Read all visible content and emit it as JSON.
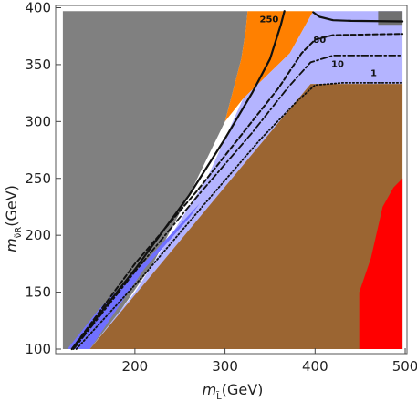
{
  "chart_data": {
    "type": "area",
    "xlim": [
      112,
      502
    ],
    "ylim": [
      96,
      402
    ],
    "xticks": [
      200,
      300,
      400,
      500
    ],
    "yticks": [
      100,
      150,
      200,
      250,
      300,
      350,
      400
    ],
    "xlabel": {
      "main": "m",
      "sub": "L̃",
      "unit": "(GeV)"
    },
    "ylabel": {
      "main": "m",
      "sub": "ν̃R",
      "unit": "(GeV)"
    },
    "regions": [
      {
        "name": "gray",
        "color": "#808080",
        "points": [
          [
            120,
            397
          ],
          [
            325,
            397
          ],
          [
            323,
            380
          ],
          [
            318,
            355
          ],
          [
            300,
            300
          ],
          [
            260,
            235
          ],
          [
            220,
            175
          ],
          [
            185,
            135
          ],
          [
            150,
            100
          ],
          [
            120,
            100
          ]
        ]
      },
      {
        "name": "orange",
        "color": "#ff8000",
        "points": [
          [
            325,
            397
          ],
          [
            398,
            397
          ],
          [
            372,
            360
          ],
          [
            320,
            320
          ],
          [
            300,
            300
          ],
          [
            318,
            355
          ],
          [
            323,
            380
          ]
        ]
      },
      {
        "name": "light-blue",
        "color": "#b4b4ff",
        "points": [
          [
            398,
            397
          ],
          [
            497,
            397
          ],
          [
            497,
            333
          ],
          [
            395,
            333
          ],
          [
            150,
            100
          ],
          [
            200,
            150
          ],
          [
            240,
            200
          ],
          [
            280,
            250
          ],
          [
            320,
            320
          ],
          [
            372,
            360
          ]
        ]
      },
      {
        "name": "blue",
        "color": "#7070ff",
        "points": [
          [
            125,
            100
          ],
          [
            150,
            100
          ],
          [
            210,
            170
          ],
          [
            260,
            215
          ],
          [
            272,
            228
          ],
          [
            215,
            180
          ],
          [
            160,
            135
          ]
        ]
      },
      {
        "name": "brown",
        "color": "#9b6532",
        "points": [
          [
            150,
            100
          ],
          [
            395,
            333
          ],
          [
            497,
            333
          ],
          [
            497,
            100
          ]
        ]
      },
      {
        "name": "red",
        "color": "#ff0000",
        "points": [
          [
            449,
            100
          ],
          [
            497,
            100
          ],
          [
            497,
            250
          ],
          [
            487,
            242
          ],
          [
            475,
            225
          ],
          [
            462,
            180
          ],
          [
            449,
            150
          ]
        ]
      },
      {
        "name": "dark-strip",
        "color": "#707070",
        "points": [
          [
            470,
            397
          ],
          [
            497,
            397
          ],
          [
            497,
            385
          ],
          [
            470,
            385
          ]
        ]
      }
    ],
    "contours": [
      {
        "label": "250",
        "style": "solid",
        "width": 2.2,
        "points": [
          [
            130,
            100
          ],
          [
            200,
            170
          ],
          [
            260,
            235
          ],
          [
            300,
            285
          ],
          [
            330,
            325
          ],
          [
            350,
            355
          ],
          [
            362,
            385
          ],
          [
            366,
            397
          ]
        ]
      },
      {
        "label": "",
        "style": "solid",
        "width": 2.2,
        "points": [
          [
            398,
            396
          ],
          [
            405,
            392
          ],
          [
            420,
            389
          ],
          [
            440,
            388.5
          ],
          [
            497,
            388
          ]
        ]
      },
      {
        "label": "80",
        "style": "dashed",
        "width": 2,
        "points": [
          [
            130,
            100
          ],
          [
            200,
            175
          ],
          [
            270,
            240
          ],
          [
            320,
            290
          ],
          [
            360,
            330
          ],
          [
            385,
            360
          ],
          [
            400,
            372
          ],
          [
            420,
            376
          ],
          [
            497,
            377
          ]
        ]
      },
      {
        "label": "10",
        "style": "dashdot",
        "width": 1.8,
        "points": [
          [
            132,
            100
          ],
          [
            200,
            168
          ],
          [
            270,
            235
          ],
          [
            330,
            290
          ],
          [
            370,
            330
          ],
          [
            395,
            352
          ],
          [
            420,
            358
          ],
          [
            497,
            358
          ]
        ]
      },
      {
        "label": "1",
        "style": "dotted",
        "width": 1.8,
        "points": [
          [
            135,
            100
          ],
          [
            210,
            165
          ],
          [
            280,
            230
          ],
          [
            340,
            285
          ],
          [
            380,
            318
          ],
          [
            400,
            332
          ],
          [
            430,
            334
          ],
          [
            497,
            334
          ]
        ]
      }
    ],
    "contour_labels": [
      {
        "text": "250",
        "x": 349,
        "y": 387
      },
      {
        "text": "80",
        "x": 405,
        "y": 369
      },
      {
        "text": "10",
        "x": 425,
        "y": 348
      },
      {
        "text": "1",
        "x": 465,
        "y": 340
      }
    ]
  }
}
